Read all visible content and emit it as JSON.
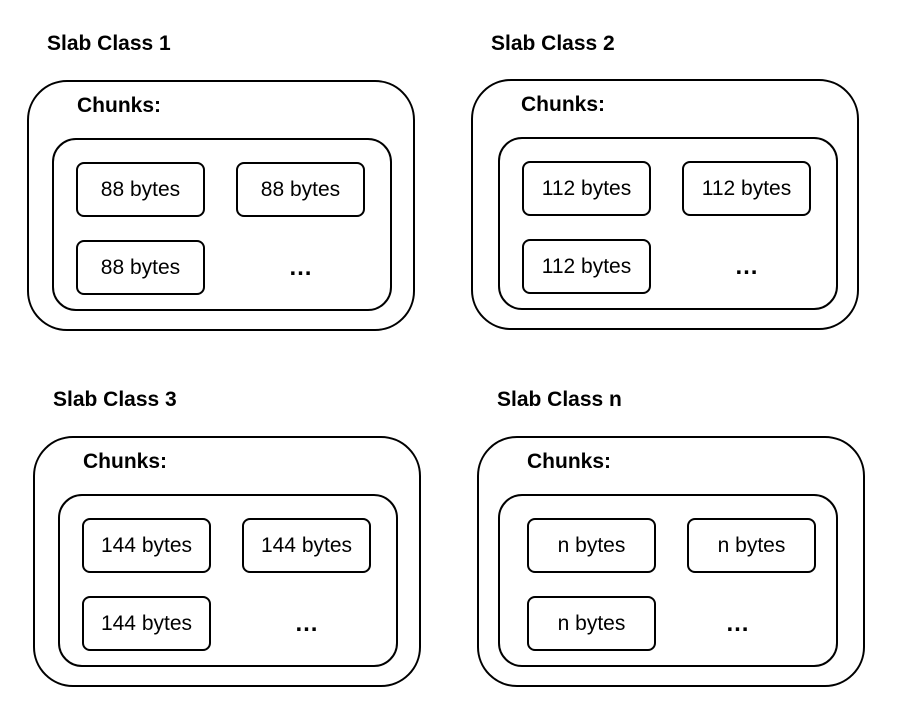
{
  "diagram": {
    "slabs": [
      {
        "title": "Slab Class 1",
        "chunks_label": "Chunks:",
        "chunks": [
          "88 bytes",
          "88 bytes",
          "88 bytes"
        ],
        "ellipsis": "…"
      },
      {
        "title": "Slab Class 2",
        "chunks_label": "Chunks:",
        "chunks": [
          "112 bytes",
          "112 bytes",
          "112 bytes"
        ],
        "ellipsis": "…"
      },
      {
        "title": "Slab Class 3",
        "chunks_label": "Chunks:",
        "chunks": [
          "144 bytes",
          "144 bytes",
          "144 bytes"
        ],
        "ellipsis": "…"
      },
      {
        "title": "Slab Class n",
        "chunks_label": "Chunks:",
        "chunks": [
          "n bytes",
          "n bytes",
          "n bytes"
        ],
        "ellipsis": "…"
      }
    ]
  }
}
